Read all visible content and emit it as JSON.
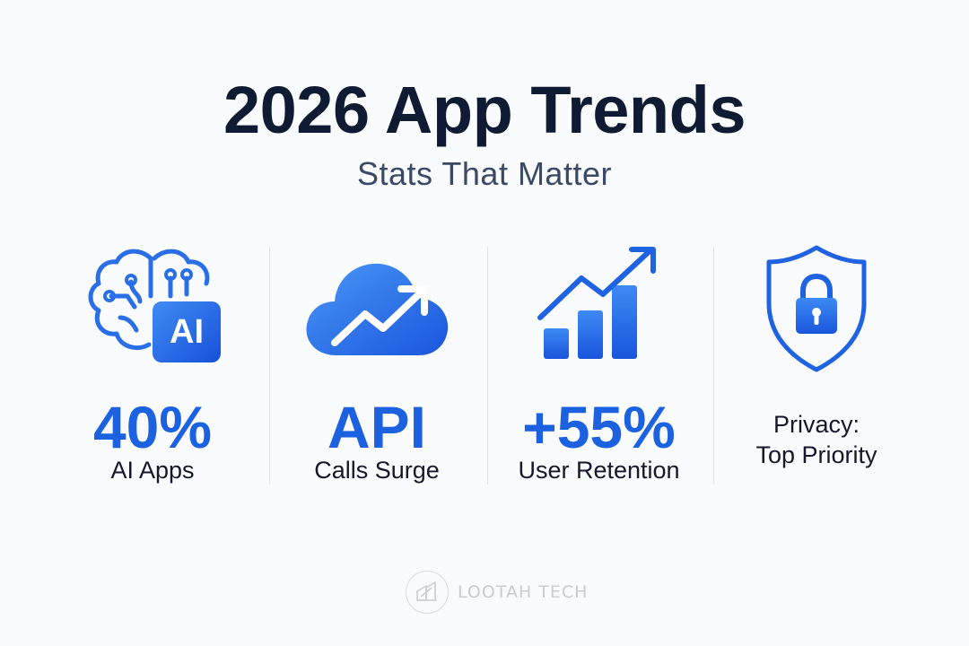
{
  "header": {
    "title": "2026 App Trends",
    "subtitle": "Stats That Matter"
  },
  "stats": [
    {
      "icon": "ai-brain-icon",
      "badge": "AI",
      "value": "40%",
      "label": "AI Apps"
    },
    {
      "icon": "cloud-trend-icon",
      "value": "API",
      "label": "Calls Surge"
    },
    {
      "icon": "bar-chart-growth-icon",
      "value": "+55%",
      "label": "User Retention"
    },
    {
      "icon": "shield-lock-icon",
      "label_line1": "Privacy:",
      "label_line2": "Top Priority"
    }
  ],
  "brand": {
    "name": "LOOTAH TECH"
  },
  "colors": {
    "accent": "#1c62e0",
    "title": "#0f1a33",
    "subtitle": "#3a4966",
    "background": "#fafbfc"
  }
}
